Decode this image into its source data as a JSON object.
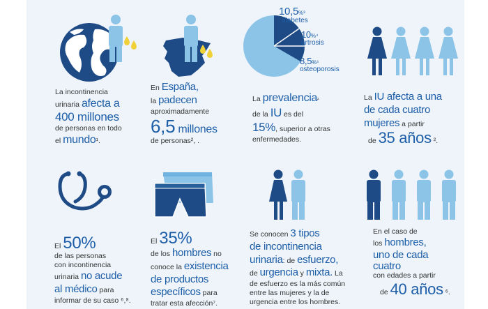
{
  "colors": {
    "dark_blue": "#1d5ea8",
    "light_blue": "#8cc4e8",
    "navy": "#1e4a85",
    "yellow": "#f0d13a"
  },
  "c1": {
    "l1": "La incontinencia",
    "l2a": "urinaria ",
    "l2b": "afecta a",
    "l3": "400 millones",
    "l4": "de personas en todo",
    "l5a": "el ",
    "l5b": "mundo",
    "l5c": "¹."
  },
  "c2": {
    "l1a": "En ",
    "l1b": "España,",
    "l2a": "la ",
    "l2b": "padecen",
    "l3": "aproximadamente",
    "l4a": "6,5",
    "l4b": " millones",
    "l5": "de personas², ."
  },
  "c3": {
    "p1": "10,5",
    "p1s": "%³",
    "p1l": "diabetes",
    "p2": "10",
    "p2s": "%⁴",
    "p2l": "artrosis",
    "p3": "8,5",
    "p3s": "%⁵",
    "p3l": "osteoporosis",
    "l1a": "La ",
    "l1b": "prevalencia",
    "l1c": "²",
    "l2a": "de la ",
    "l2b": "IU",
    "l2c": " es del",
    "l3a": "15%",
    "l3b": ", superior a otras",
    "l4": "enfermedades."
  },
  "c4": {
    "l1a": "La ",
    "l1b": "IU afecta a una",
    "l2": "de cada cuatro",
    "l3a": "mujeres",
    "l3b": " a partir",
    "l4a": "de ",
    "l4b": "35 años",
    "l4c": " ²."
  },
  "c5": {
    "l1": "El",
    "l1b": "50%",
    "l2": "de las personas",
    "l3": "con incontinencia",
    "l4a": "urinaria ",
    "l4b": "no acude",
    "l5a": "al médico",
    "l5b": " para",
    "l6": "informar de su caso ⁶,⁸."
  },
  "c6": {
    "l1a": "El",
    "l1b": "35%",
    "l2a": "de los ",
    "l2b": "hombres",
    "l2c": " no",
    "l3a": "conoce la ",
    "l3b": "existencia",
    "l4": "de productos",
    "l5a": "específicos",
    "l5b": " para",
    "l6": "tratar esta afección⁷."
  },
  "c7": {
    "l1a": "Se conocen ",
    "l1b": "3 tipos",
    "l2": "de incontinencia",
    "l3a": "urinaria",
    "l3b": ": de ",
    "l3c": "esfuerzo,",
    "l4a": "de ",
    "l4b": "urgencia",
    "l4c": " y ",
    "l4d": "mixta.",
    "l4e": " La",
    "l5": "de esfuerzo es la más común",
    "l6": "entre las mujeres y la de",
    "l7": "urgencia entre los hombres."
  },
  "c8": {
    "l1": "En el caso de",
    "l2a": "los ",
    "l2b": "hombres,",
    "l3": "uno de cada",
    "l4": "cuatro",
    "l5": "con edades a partir",
    "l6a": "de ",
    "l6b": "40 años",
    "l6c": " ⁶."
  }
}
